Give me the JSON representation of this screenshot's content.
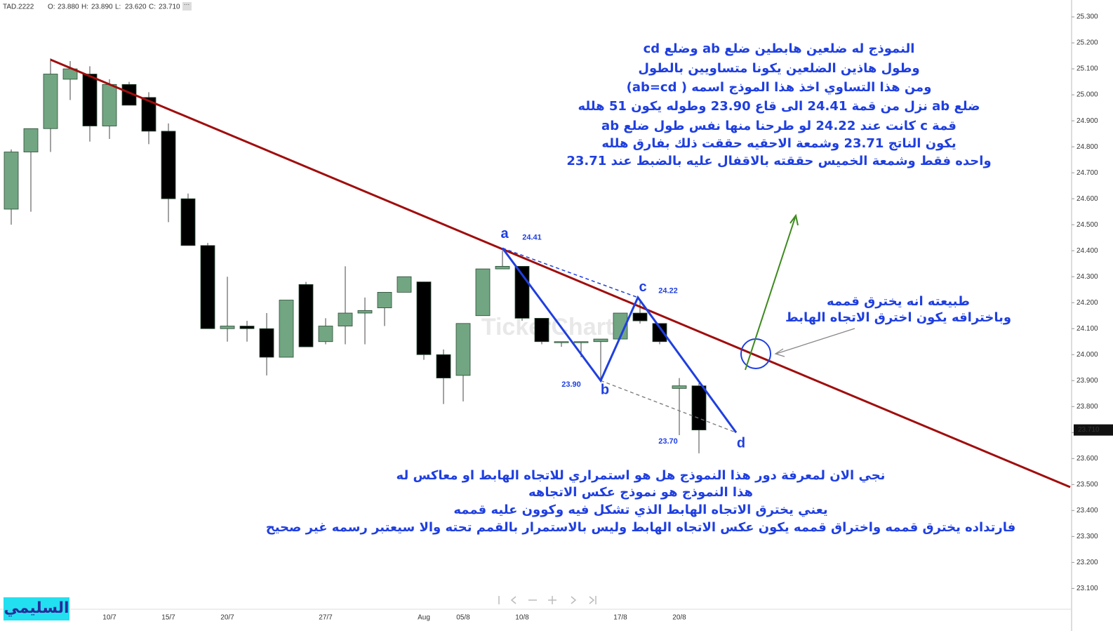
{
  "chart_data": {
    "type": "candlestick",
    "symbol": "TAD.2222",
    "header": [
      {
        "key": "O:",
        "value": "23.880"
      },
      {
        "key": "H:",
        "value": "23.890"
      },
      {
        "key": "L:",
        "value": "23.620"
      },
      {
        "key": "C:",
        "value": "23.710"
      }
    ],
    "watermark": "TickerChart",
    "categories": [
      null,
      null,
      null,
      null,
      null,
      "10/7",
      null,
      null,
      "15/7",
      null,
      null,
      "20/7",
      null,
      null,
      null,
      null,
      "27/7",
      null,
      null,
      null,
      null,
      "Aug",
      null,
      "05/8",
      null,
      null,
      "10/8",
      null,
      null,
      null,
      null,
      "17/8",
      null,
      null,
      "20/8",
      null
    ],
    "open": [
      24.56,
      24.78,
      24.87,
      25.06,
      25.08,
      24.88,
      25.04,
      24.99,
      24.86,
      24.6,
      24.42,
      24.1,
      24.11,
      24.1,
      23.99,
      24.27,
      24.05,
      24.11,
      24.16,
      24.18,
      24.24,
      24.28,
      24.0,
      23.92,
      24.15,
      24.33,
      24.34,
      24.14,
      24.05,
      24.05,
      24.05,
      24.06,
      24.16,
      24.12,
      23.87,
      23.88
    ],
    "high": [
      24.79,
      24.87,
      25.14,
      25.13,
      25.11,
      25.06,
      25.05,
      25.01,
      24.89,
      24.62,
      24.43,
      24.3,
      24.13,
      24.16,
      24.21,
      24.28,
      24.14,
      24.34,
      24.22,
      24.24,
      24.3,
      24.28,
      24.02,
      24.12,
      24.33,
      24.4,
      24.34,
      24.14,
      24.05,
      24.05,
      24.06,
      24.16,
      24.21,
      24.12,
      23.91,
      23.89
    ],
    "low": [
      24.5,
      24.55,
      24.78,
      24.98,
      24.82,
      24.83,
      24.96,
      24.81,
      24.51,
      24.42,
      24.1,
      24.05,
      24.05,
      23.92,
      23.99,
      24.03,
      24.04,
      24.04,
      24.04,
      24.11,
      24.24,
      23.98,
      23.81,
      23.82,
      24.15,
      24.33,
      24.13,
      24.04,
      24.03,
      23.99,
      23.9,
      24.06,
      24.12,
      24.04,
      23.69,
      23.62
    ],
    "close": [
      24.78,
      24.87,
      25.08,
      25.1,
      24.88,
      25.04,
      24.96,
      24.86,
      24.6,
      24.42,
      24.1,
      24.11,
      24.1,
      23.99,
      24.21,
      24.03,
      24.11,
      24.16,
      24.17,
      24.24,
      24.3,
      24.0,
      23.91,
      24.12,
      24.33,
      24.34,
      24.14,
      24.05,
      24.05,
      24.05,
      24.06,
      24.16,
      24.13,
      24.05,
      23.88,
      23.71
    ],
    "up_color": "#72a682",
    "down_color": "#000000",
    "ylim": [
      23.02,
      25.365
    ],
    "yticks": [
      {
        "value": 23.1,
        "label": "23.100"
      },
      {
        "value": 23.2,
        "label": "23.200"
      },
      {
        "value": 23.3,
        "label": "23.300"
      },
      {
        "value": 23.4,
        "label": "23.400"
      },
      {
        "value": 23.5,
        "label": "23.500"
      },
      {
        "value": 23.6,
        "label": "23.600"
      },
      {
        "value": 23.7,
        "label": "23.700"
      },
      {
        "value": 23.8,
        "label": "23.800"
      },
      {
        "value": 23.9,
        "label": "23.900"
      },
      {
        "value": 24.0,
        "label": "24.000"
      },
      {
        "value": 24.1,
        "label": "24.100"
      },
      {
        "value": 24.2,
        "label": "24.200"
      },
      {
        "value": 24.3,
        "label": "24.300"
      },
      {
        "value": 24.4,
        "label": "24.400"
      },
      {
        "value": 24.5,
        "label": "24.500"
      },
      {
        "value": 24.6,
        "label": "24.600"
      },
      {
        "value": 24.7,
        "label": "24.700"
      },
      {
        "value": 24.8,
        "label": "24.800"
      },
      {
        "value": 24.9,
        "label": "24.900"
      },
      {
        "value": 25.0,
        "label": "25.000"
      },
      {
        "value": 25.1,
        "label": "25.100"
      },
      {
        "value": 25.2,
        "label": "25.200"
      },
      {
        "value": 25.3,
        "label": "25.300"
      }
    ],
    "last_price": {
      "value": 23.71,
      "label": "23.710"
    },
    "pattern_color": "#1f3fe0",
    "pattern_points": [
      {
        "name": "a",
        "value": 24.41,
        "label": "24.41"
      },
      {
        "name": "b",
        "value": 23.9,
        "label": "23.90"
      },
      {
        "name": "c",
        "value": 24.22,
        "label": "24.22"
      },
      {
        "name": "d",
        "value": 23.7,
        "label": "23.70"
      }
    ],
    "notes_top": [
      "النموذج له ضلعين هابطين ضلع ab  وضلع  cd",
      "وطول هاذين الضلعين يكونا متساويين بالطول",
      "ومن هذا التساوي اخذ هذا الموذج اسمه ( ab=cd)",
      "ضلع ab نزل من قمة 24.41 الى قاع 23.90  وطوله يكون 51 هلله",
      "قمة c كانت عند 24.22 لو طرحنا منها نفس طول ضلع ab",
      "يكون الناتج 23.71 وشمعة الاحقيه حققت ذلك بفارق هلله",
      "واحده فقط وشمعة الخميس حققته بالاقفال عليه بالضبط عند 23.71"
    ],
    "notes_right": [
      "طبيعته انه يخترق قممه",
      "وباختراقه يكون اخترق الاتجاه الهابط"
    ],
    "notes_bottom": [
      "نجي الان لمعرفة دور هذا النموذج هل هو استمراري للاتجاه الهابط او معاكس له",
      "هذا النموذج هو نموذج عكس الاتجاهه",
      "يعني يخترق الاتجاه الهابط الذي تشكل فيه وكوون عليه قممه",
      "فارتداده يخترق قممه واختراق قممه يكون عكس الاتجاه الهابط وليس بالاستمرار بالقمم تحته والا سيعتبر رسمه غير صحيح"
    ],
    "signature": "السليمي"
  }
}
